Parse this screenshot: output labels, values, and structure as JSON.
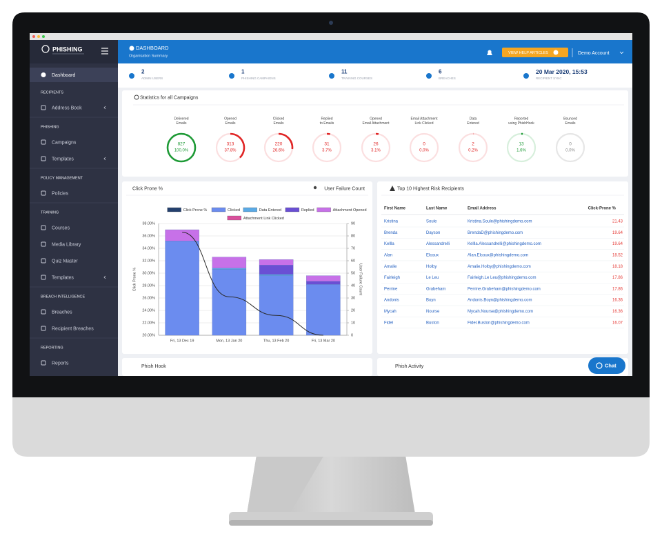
{
  "sidebar": {
    "logo": "PHISHING",
    "active": "Dashboard",
    "sections": [
      {
        "heading": "RECIPIENTS",
        "items": [
          {
            "label": "Address Book",
            "submenu": true
          }
        ]
      },
      {
        "heading": "PHISHING",
        "items": [
          {
            "label": "Campaigns",
            "submenu": false
          },
          {
            "label": "Templates",
            "submenu": true
          }
        ]
      },
      {
        "heading": "POLICY MANAGEMENT",
        "items": [
          {
            "label": "Policies",
            "submenu": false
          }
        ]
      },
      {
        "heading": "TRAINING",
        "items": [
          {
            "label": "Courses",
            "submenu": false
          },
          {
            "label": "Media Library",
            "submenu": false
          },
          {
            "label": "Quiz Master",
            "submenu": false
          },
          {
            "label": "Templates",
            "submenu": true
          }
        ]
      },
      {
        "heading": "BREACH INTELLIGENCE",
        "items": [
          {
            "label": "Breaches",
            "submenu": false
          },
          {
            "label": "Recipient Breaches",
            "submenu": false
          }
        ]
      },
      {
        "heading": "REPORTING",
        "items": [
          {
            "label": "Reports",
            "submenu": false
          }
        ]
      }
    ]
  },
  "header": {
    "title": "DASHBOARD",
    "subtitle": "Organisation Summary",
    "help": "VIEW HELP ARTICLES",
    "account": "Demo Account"
  },
  "stats": [
    {
      "value": 2,
      "label": "ADMIN USERS"
    },
    {
      "value": 1,
      "label": "PHISHING CAMPAIGNS"
    },
    {
      "value": 11,
      "label": "TRAINING COURSES"
    },
    {
      "value": 6,
      "label": "BREACHES"
    },
    {
      "value": "20 Mar 2020, 15:53",
      "label": "RECIPIENT SYNC"
    }
  ],
  "campaigns": {
    "title": "Statistics for all Campaigns",
    "gauges": [
      {
        "label": [
          "Delivered",
          "Emails"
        ],
        "count": 827,
        "percent": 100.0,
        "percent_label": "100.0%",
        "color": "#1e9a36",
        "track": "#d7efdc"
      },
      {
        "label": [
          "Opened",
          "Emails"
        ],
        "count": 313,
        "percent": 37.8,
        "percent_label": "37.8%",
        "color": "#e02525",
        "track": "#fbdfe0"
      },
      {
        "label": [
          "Clicked",
          "Emails"
        ],
        "count": 220,
        "percent": 26.6,
        "percent_label": "26.6%",
        "color": "#e02525",
        "track": "#fbdfe0"
      },
      {
        "label": [
          "Replied",
          "to Emails"
        ],
        "count": 31,
        "percent": 3.7,
        "percent_label": "3.7%",
        "color": "#e02525",
        "track": "#fbdfe0"
      },
      {
        "label": [
          "Opened",
          "Email Attachment"
        ],
        "count": 26,
        "percent": 3.1,
        "percent_label": "3.1%",
        "color": "#e02525",
        "track": "#fbdfe0"
      },
      {
        "label": [
          "Email Attachment",
          "Link Clicked"
        ],
        "count": 0,
        "percent": 0.0,
        "percent_label": "0.0%",
        "color": "#e02525",
        "track": "#fbdfe0"
      },
      {
        "label": [
          "Data",
          "Entered"
        ],
        "count": 2,
        "percent": 0.2,
        "percent_label": "0.2%",
        "color": "#e02525",
        "track": "#fbdfe0"
      },
      {
        "label": [
          "Reported",
          "using PhishHook"
        ],
        "count": 13,
        "percent": 1.6,
        "percent_label": "1.6%",
        "color": "#1e9a36",
        "track": "#d7efdc"
      },
      {
        "label": [
          "Bounced",
          "Emails"
        ],
        "count": 0,
        "percent": 0.0,
        "percent_label": "0.0%",
        "color": "#888888",
        "track": "#e6e6e6"
      }
    ]
  },
  "click_chart": {
    "type": "bar",
    "stacked": true,
    "title": "Click Prone %",
    "right_title": "User Failure Count",
    "ylabel": "Click Prone %",
    "y2label": "User Failure Count",
    "categories": [
      "Fri, 13 Dec 19",
      "Mon, 13 Jan 20",
      "Thu, 13 Feb 20",
      "Fri, 13 Mar 20"
    ],
    "series": [
      {
        "name": "Click Prone %",
        "color": "#24406e",
        "type": "line",
        "axis": "y2",
        "values": [
          83,
          31,
          16,
          0
        ]
      },
      {
        "name": "Clicked",
        "color": "#6b8cef",
        "values": [
          35.2,
          30.6,
          29.6,
          28.2
        ]
      },
      {
        "name": "Data Entered",
        "color": "#5aaae6",
        "values": [
          0,
          0.2,
          0.2,
          0
        ]
      },
      {
        "name": "Replied",
        "color": "#6a4fd4",
        "values": [
          0,
          0,
          1.5,
          0.5
        ]
      },
      {
        "name": "Attachment Opened",
        "color": "#c771e8",
        "values": [
          1.8,
          1.8,
          0.9,
          0.9
        ]
      },
      {
        "name": "Attachment Link Clicked",
        "color": "#d9509c",
        "values": [
          0,
          0,
          0,
          0
        ]
      }
    ],
    "ylim": [
      20,
      38
    ],
    "yticks": [
      {
        "value": 20,
        "label": "20.00%"
      },
      {
        "value": 22,
        "label": "22.00%"
      },
      {
        "value": 24,
        "label": "24.00%"
      },
      {
        "value": 26,
        "label": "26.00%"
      },
      {
        "value": 28,
        "label": "28.00%"
      },
      {
        "value": 30,
        "label": "30.00%"
      },
      {
        "value": 32,
        "label": "32.00%"
      },
      {
        "value": 34,
        "label": "34.00%"
      },
      {
        "value": 36,
        "label": "36.00%"
      },
      {
        "value": 38,
        "label": "38.00%"
      }
    ],
    "y2lim": [
      0,
      90
    ],
    "y2ticks": [
      0,
      10,
      20,
      30,
      40,
      50,
      60,
      70,
      80,
      90
    ],
    "grid": true
  },
  "risk_table": {
    "title": "Top 10 Highest Risk Recipients",
    "columns": [
      "First Name",
      "Last Name",
      "Email Address",
      "Click-Prone %"
    ],
    "rows": [
      [
        "Kristina",
        "Soule",
        "Kristina.Soule@phishingdemo.com",
        "21.43"
      ],
      [
        "Brenda",
        "Dayson",
        "BrendaD@phishingdemo.com",
        "19.64"
      ],
      [
        "Kellla",
        "Alessandrelli",
        "Kellla.Alessandrelli@phishingdemo.com",
        "19.64"
      ],
      [
        "Alan",
        "Elcoux",
        "Alan.Elcoux@phishingdemo.com",
        "18.52"
      ],
      [
        "Amalie",
        "Holby",
        "Amalie.Holby@phishingdemo.com",
        "18.18"
      ],
      [
        "Fairleigh",
        "Le Leu",
        "Fairleigh.Le Leu@phishingdemo.com",
        "17.86"
      ],
      [
        "Perrine",
        "Grabeham",
        "Perrine.Grabeham@phishingdemo.com",
        "17.86"
      ],
      [
        "Andonis",
        "Boyn",
        "Andonis.Boyn@phishingdemo.com",
        "16.36"
      ],
      [
        "Mycah",
        "Nourse",
        "Mycah.Nourse@phishingdemo.com",
        "16.36"
      ],
      [
        "Fidel",
        "Buston",
        "Fidel.Buston@phishingdemo.com",
        "16.07"
      ]
    ]
  },
  "bottom": {
    "left": "Phish Hook",
    "right": "Phish Activity",
    "chat": "Chat"
  }
}
